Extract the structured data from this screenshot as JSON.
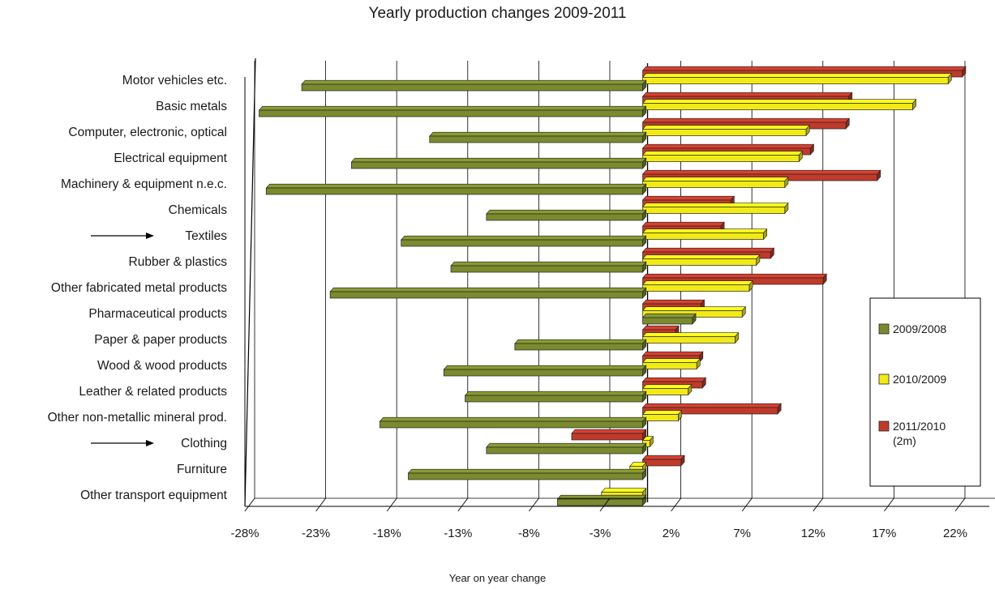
{
  "chart_data": {
    "type": "bar",
    "orientation": "horizontal",
    "title": "Yearly production changes 2009-2011",
    "xlabel": "Year on year change",
    "ylabel": "",
    "xlim": [
      -28,
      24
    ],
    "x_ticks": [
      -28,
      -23,
      -18,
      -13,
      -8,
      -3,
      2,
      7,
      12,
      17,
      22
    ],
    "tick_suffix": "%",
    "grid": true,
    "legend_position": "right",
    "categories": [
      "Motor vehicles etc.",
      "Basic metals",
      "Computer, electronic, optical",
      "Electrical equipment",
      "Machinery & equipment n.e.c.",
      "Chemicals",
      "Textiles",
      "Rubber & plastics",
      "Other fabricated metal products",
      "Pharmaceutical products",
      "Paper & paper products",
      "Wood & wood products",
      "Leather & related products",
      "Other non-metallic mineral prod.",
      "Clothing",
      "Furniture",
      "Other transport equipment"
    ],
    "highlighted": [
      "Textiles",
      "Clothing"
    ],
    "series": [
      {
        "name": "2009/2008",
        "color": "#7a8a2e",
        "values": [
          -24,
          -27,
          -15,
          -20.5,
          -26.5,
          -11,
          -17,
          -13.5,
          -22,
          3.5,
          -9,
          -14,
          -12.5,
          -18.5,
          -11,
          -16.5,
          -6
        ]
      },
      {
        "name": "2010/2009",
        "color": "#f2ea16",
        "values": [
          21.5,
          19,
          11.5,
          11,
          10,
          10,
          8.5,
          8,
          7.5,
          7,
          6.5,
          3.8,
          3.2,
          2.5,
          0.5,
          -0.9,
          -2.9
        ]
      },
      {
        "name": "2011/2010",
        "label_lines": [
          "2011/2010",
          "(2m)"
        ],
        "color": "#c03a2b",
        "values": [
          22.5,
          14.5,
          14.3,
          11.8,
          16.5,
          6.2,
          5.5,
          9,
          12.7,
          4.1,
          2.3,
          4,
          4.2,
          9.5,
          -5,
          2.7,
          0
        ]
      }
    ]
  }
}
